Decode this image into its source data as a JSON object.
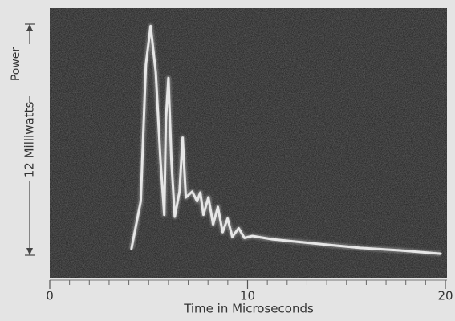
{
  "chart_data": {
    "type": "line",
    "xlabel": "Time in Microseconds",
    "ylabel_top": "Power",
    "ylabel": "12 Milliwatts",
    "x": [
      4.13,
      4.6,
      4.86,
      5.1,
      5.36,
      5.6,
      5.79,
      5.87,
      6.0,
      6.15,
      6.32,
      6.56,
      6.72,
      6.88,
      7.2,
      7.45,
      7.61,
      7.77,
      8.02,
      8.26,
      8.5,
      8.74,
      8.99,
      9.23,
      9.55,
      9.84,
      10.24,
      11.25,
      13.68,
      15.7,
      17.7,
      19.76
    ],
    "values": [
      0.33,
      2.8,
      9.9,
      11.9,
      9.5,
      4.9,
      2.1,
      7.0,
      9.2,
      4.9,
      2.0,
      3.3,
      6.1,
      3.0,
      3.3,
      2.8,
      3.25,
      2.1,
      3.0,
      1.6,
      2.5,
      1.2,
      1.9,
      0.96,
      1.4,
      0.9,
      1.0,
      0.83,
      0.58,
      0.38,
      0.25,
      0.08
    ],
    "color": "#e6e6e6",
    "xlim": [
      0,
      20
    ],
    "xticks": [
      0,
      10,
      20
    ],
    "xminorticks": [
      1,
      2,
      3,
      4,
      5,
      6,
      7,
      8,
      9,
      11,
      12,
      13,
      14,
      15,
      16,
      17,
      18,
      19
    ],
    "ylim": [
      0,
      12
    ]
  }
}
